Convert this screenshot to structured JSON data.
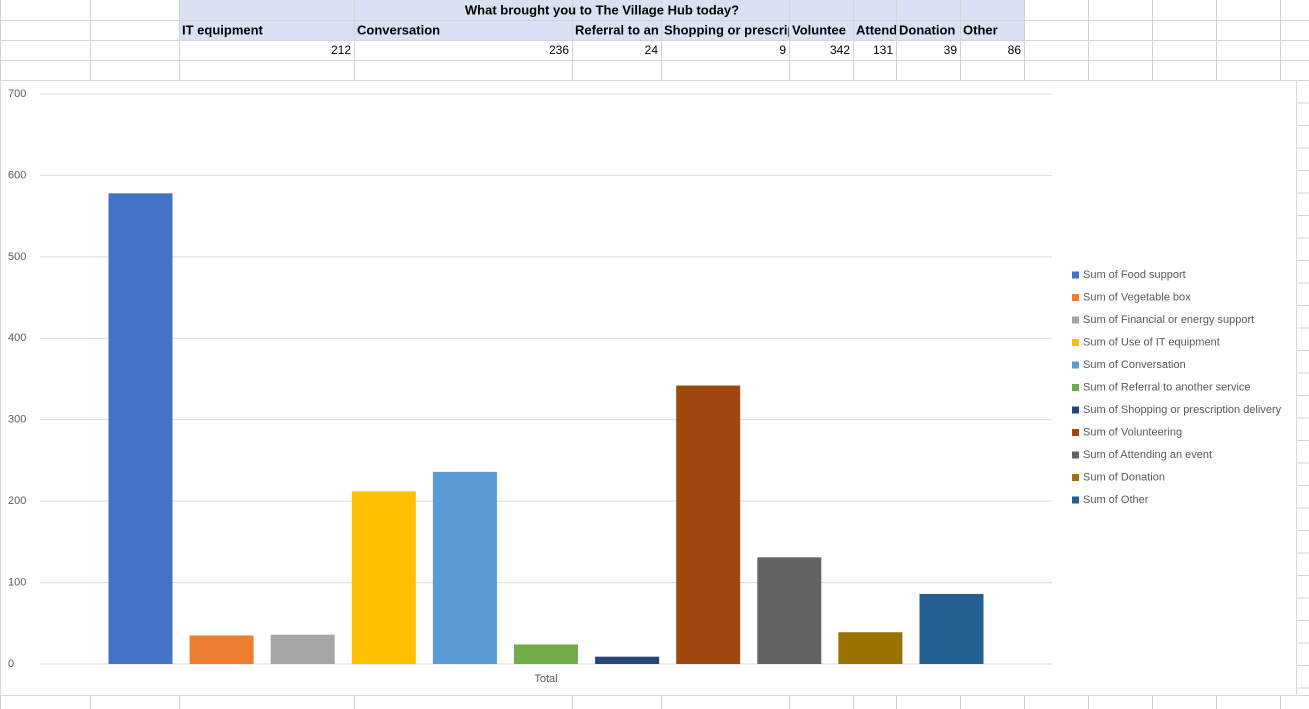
{
  "sheet": {
    "title": "What brought you to The Village Hub today?",
    "headers": [
      "IT equipment",
      "Conversation",
      "Referral to an",
      "Shopping or prescrip",
      "Voluntee",
      "Attend",
      "Donation",
      "Other"
    ],
    "values": [
      212,
      236,
      24,
      9,
      342,
      131,
      39,
      86
    ]
  },
  "chart_data": {
    "type": "bar",
    "categories": [
      "Total"
    ],
    "series": [
      {
        "name": "Sum of Food support",
        "color": "#4472c4",
        "values": [
          578
        ]
      },
      {
        "name": "Sum of Vegetable box",
        "color": "#ed7d31",
        "values": [
          35
        ]
      },
      {
        "name": "Sum of Financial or energy support",
        "color": "#a5a5a5",
        "values": [
          36
        ]
      },
      {
        "name": "Sum of Use of IT equipment",
        "color": "#ffc000",
        "values": [
          212
        ]
      },
      {
        "name": "Sum of Conversation",
        "color": "#5b9bd5",
        "values": [
          236
        ]
      },
      {
        "name": "Sum of Referral to another service",
        "color": "#70ad47",
        "values": [
          24
        ]
      },
      {
        "name": "Sum of Shopping or prescription delivery",
        "color": "#264478",
        "values": [
          9
        ]
      },
      {
        "name": "Sum of Volunteering",
        "color": "#9e480e",
        "values": [
          342
        ]
      },
      {
        "name": "Sum of Attending an event",
        "color": "#636363",
        "values": [
          131
        ]
      },
      {
        "name": "Sum of Donation",
        "color": "#997300",
        "values": [
          39
        ]
      },
      {
        "name": "Sum of Other",
        "color": "#255e91",
        "values": [
          86
        ]
      }
    ],
    "ylim": [
      0,
      700
    ],
    "yticks": [
      0,
      100,
      200,
      300,
      400,
      500,
      600,
      700
    ],
    "grid": true,
    "legend": "right"
  }
}
